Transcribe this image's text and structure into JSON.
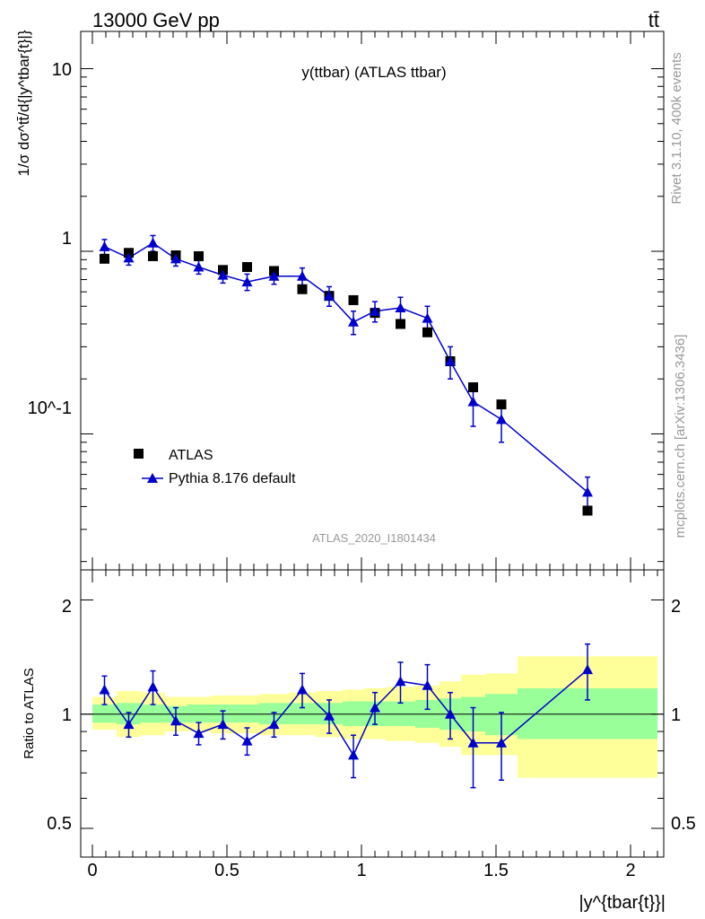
{
  "header": {
    "energy_label": "13000 GeV pp",
    "process_label": "tt̄"
  },
  "side": {
    "rivet_label": "Rivet 3.1.10,  400k events",
    "mcplots_label": "mcplots.cern.ch [arXiv:1306.3436]"
  },
  "main_plot": {
    "title": "y(ttbar) (ATLAS ttbar)",
    "ylabel": "1/σ dσ^tt̄/d{|y^tbar{t}|}",
    "analysis_id": "ATLAS_2020_I1801434",
    "yticks": [
      "10",
      "1",
      "10^-1"
    ]
  },
  "ratio_plot": {
    "ylabel": "Ratio to ATLAS",
    "yticks": [
      "2",
      "1",
      "0.5"
    ]
  },
  "x_axis": {
    "label": "|y^{tbar{t}}|",
    "ticks": [
      "0",
      "0.5",
      "1",
      "1.5",
      "2"
    ]
  },
  "legend": {
    "data_label": "ATLAS",
    "mc_label": "Pythia 8.176 default"
  },
  "colors": {
    "data": "#000000",
    "mc": "#0000cc",
    "band_inner": "#99ff99",
    "band_outer": "#ffff99",
    "side_text": "#999999"
  },
  "chart_data": [
    {
      "type": "scatter",
      "title": "y(ttbar) (ATLAS ttbar)",
      "yscale": "log",
      "xlim": [
        -0.05,
        2.2
      ],
      "ylim": [
        0.018,
        16
      ],
      "series": [
        {
          "name": "ATLAS",
          "x": [
            0.045,
            0.135,
            0.225,
            0.31,
            0.395,
            0.485,
            0.575,
            0.675,
            0.78,
            0.88,
            0.97,
            1.05,
            1.145,
            1.245,
            1.33,
            1.415,
            1.52,
            1.84
          ],
          "y": [
            0.91,
            0.98,
            0.94,
            0.95,
            0.94,
            0.79,
            0.82,
            0.78,
            0.62,
            0.57,
            0.54,
            0.46,
            0.4,
            0.36,
            0.25,
            0.18,
            0.145,
            0.038
          ]
        },
        {
          "name": "Pythia 8.176 default",
          "x": [
            0.045,
            0.135,
            0.225,
            0.31,
            0.395,
            0.485,
            0.575,
            0.675,
            0.78,
            0.88,
            0.97,
            1.05,
            1.145,
            1.245,
            1.33,
            1.415,
            1.52,
            1.84
          ],
          "y": [
            1.06,
            0.92,
            1.11,
            0.91,
            0.82,
            0.74,
            0.68,
            0.73,
            0.73,
            0.57,
            0.41,
            0.47,
            0.49,
            0.43,
            0.25,
            0.15,
            0.12,
            0.048
          ],
          "yerr": [
            0.1,
            0.08,
            0.11,
            0.08,
            0.07,
            0.07,
            0.07,
            0.07,
            0.08,
            0.07,
            0.06,
            0.06,
            0.07,
            0.07,
            0.05,
            0.04,
            0.03,
            0.01
          ]
        }
      ]
    },
    {
      "type": "scatter",
      "ylabel": "Ratio to ATLAS",
      "yscale": "log",
      "xlim": [
        -0.05,
        2.2
      ],
      "ylim": [
        0.42,
        2.4
      ],
      "reference": 1,
      "bin_edges": [
        0,
        0.09,
        0.18,
        0.27,
        0.35,
        0.44,
        0.53,
        0.62,
        0.73,
        0.83,
        0.93,
        1.01,
        1.09,
        1.2,
        1.29,
        1.37,
        1.46,
        1.58,
        2.1
      ],
      "bands": {
        "inner": [
          [
            0.95,
            1.06
          ],
          [
            0.94,
            1.07
          ],
          [
            0.95,
            1.06
          ],
          [
            0.95,
            1.05
          ],
          [
            0.95,
            1.06
          ],
          [
            0.95,
            1.06
          ],
          [
            0.95,
            1.06
          ],
          [
            0.94,
            1.07
          ],
          [
            0.94,
            1.07
          ],
          [
            0.94,
            1.07
          ],
          [
            0.93,
            1.08
          ],
          [
            0.93,
            1.08
          ],
          [
            0.93,
            1.08
          ],
          [
            0.92,
            1.09
          ],
          [
            0.91,
            1.1
          ],
          [
            0.9,
            1.11
          ],
          [
            0.88,
            1.13
          ],
          [
            0.86,
            1.17
          ]
        ],
        "outer": [
          [
            0.91,
            1.11
          ],
          [
            0.87,
            1.15
          ],
          [
            0.88,
            1.14
          ],
          [
            0.9,
            1.11
          ],
          [
            0.9,
            1.11
          ],
          [
            0.89,
            1.12
          ],
          [
            0.89,
            1.12
          ],
          [
            0.88,
            1.13
          ],
          [
            0.88,
            1.14
          ],
          [
            0.87,
            1.15
          ],
          [
            0.86,
            1.16
          ],
          [
            0.86,
            1.17
          ],
          [
            0.85,
            1.18
          ],
          [
            0.84,
            1.19
          ],
          [
            0.82,
            1.22
          ],
          [
            0.78,
            1.27
          ],
          [
            0.78,
            1.28
          ],
          [
            0.68,
            1.42
          ]
        ]
      },
      "series": [
        {
          "name": "Pythia 8.176 default",
          "x": [
            0.045,
            0.135,
            0.225,
            0.31,
            0.395,
            0.485,
            0.575,
            0.675,
            0.78,
            0.88,
            0.97,
            1.05,
            1.145,
            1.245,
            1.33,
            1.415,
            1.52,
            1.84
          ],
          "y": [
            1.16,
            0.94,
            1.18,
            0.96,
            0.89,
            0.94,
            0.85,
            0.94,
            1.16,
            0.99,
            0.78,
            1.04,
            1.22,
            1.19,
            1.0,
            0.84,
            0.84,
            1.31
          ],
          "yerr": [
            0.1,
            0.07,
            0.12,
            0.08,
            0.06,
            0.08,
            0.07,
            0.07,
            0.12,
            0.1,
            0.1,
            0.1,
            0.15,
            0.16,
            0.14,
            0.2,
            0.17,
            0.22
          ]
        }
      ]
    }
  ]
}
